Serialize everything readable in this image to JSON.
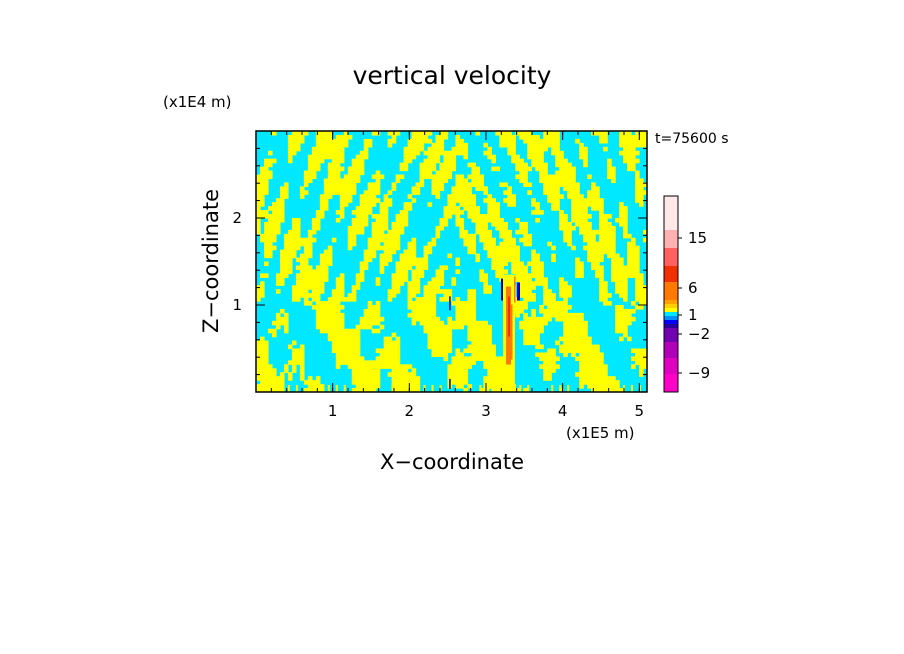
{
  "chart_data": {
    "type": "heatmap",
    "title": "vertical velocity",
    "time_label": "t=75600 s",
    "xlabel": "X−coordinate",
    "ylabel": "Z−coordinate",
    "x_scale_label": "(x1E5 m)",
    "y_scale_label": "(x1E4 m)",
    "xlim": [
      0,
      5.1
    ],
    "ylim": [
      0,
      3.0
    ],
    "x_ticks": [
      1,
      2,
      3,
      4,
      5
    ],
    "x_tick_labels": [
      "1",
      "2",
      "3",
      "4",
      "5"
    ],
    "y_ticks": [
      1,
      2
    ],
    "y_tick_labels": [
      "1",
      "2"
    ],
    "colorbar": {
      "labels": [
        {
          "value": 15,
          "text": "15"
        },
        {
          "value": 6,
          "text": "6"
        },
        {
          "value": 1,
          "text": "1"
        },
        {
          "value": -2,
          "text": "−2"
        },
        {
          "value": -9,
          "text": "−9"
        }
      ],
      "bands": [
        {
          "color": "#ff00c8"
        },
        {
          "color": "#e000c0"
        },
        {
          "color": "#b000b8"
        },
        {
          "color": "#7000b0"
        },
        {
          "color": "#2800a0"
        },
        {
          "color": "#0000ff"
        },
        {
          "color": "#0090ff"
        },
        {
          "color": "#00e8ff"
        },
        {
          "color": "#ffff00"
        },
        {
          "color": "#ffd000"
        },
        {
          "color": "#ffa000"
        },
        {
          "color": "#ff7800"
        },
        {
          "color": "#f03000"
        },
        {
          "color": "#ff6060"
        },
        {
          "color": "#ffb0b0"
        },
        {
          "color": "#ffe8e8"
        }
      ]
    },
    "field_colors": {
      "weak_positive": "#ffff00",
      "weak_negative": "#00e8ff",
      "strong_positive": "#ff7800",
      "strong_negative": "#0000c0",
      "core": "#f03000"
    },
    "grid": false
  }
}
